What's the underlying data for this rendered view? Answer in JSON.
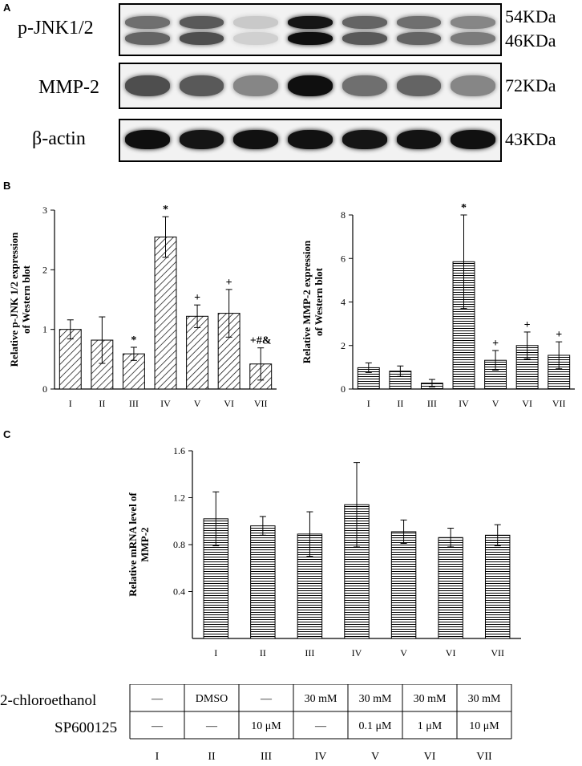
{
  "panels": {
    "a": "A",
    "b": "B",
    "c": "C"
  },
  "blots": [
    {
      "label": "p-JNK1/2",
      "markers": [
        "54KDa",
        "46KDa"
      ]
    },
    {
      "label": "MMP-2",
      "markers": [
        "72KDa"
      ]
    },
    {
      "label": "β-actin",
      "markers": [
        "43KDa"
      ]
    }
  ],
  "chart_data": [
    {
      "type": "bar",
      "categories": [
        "I",
        "II",
        "III",
        "IV",
        "V",
        "VI",
        "VII"
      ],
      "values": [
        1.0,
        0.82,
        0.59,
        2.55,
        1.22,
        1.27,
        0.42
      ],
      "errors": [
        0.16,
        0.39,
        0.11,
        0.34,
        0.19,
        0.4,
        0.27
      ],
      "annotations": [
        "",
        "",
        "*",
        "*",
        "+",
        "+",
        "+#&"
      ],
      "ylabel": "Relative p-JNK 1/2 expression of  Western blot",
      "ylim": [
        0,
        3
      ],
      "yticks": [
        "0",
        "1",
        "2",
        "3"
      ],
      "pattern": "diagonal"
    },
    {
      "type": "bar",
      "categories": [
        "I",
        "II",
        "III",
        "IV",
        "V",
        "VI",
        "VII"
      ],
      "values": [
        0.98,
        0.82,
        0.27,
        5.85,
        1.32,
        2.0,
        1.55
      ],
      "errors": [
        0.22,
        0.24,
        0.17,
        2.15,
        0.45,
        0.62,
        0.62
      ],
      "annotations": [
        "",
        "",
        "",
        "*",
        "+",
        "+",
        "+"
      ],
      "ylabel": "Relative MMP-2 expression of  Western blot",
      "ylim": [
        0,
        8
      ],
      "yticks": [
        "0",
        "2",
        "4",
        "6",
        "8"
      ],
      "pattern": "horizontal"
    },
    {
      "type": "bar",
      "categories": [
        "I",
        "II",
        "III",
        "IV",
        "V",
        "VI",
        "VII"
      ],
      "values": [
        1.02,
        0.96,
        0.89,
        1.14,
        0.91,
        0.86,
        0.88
      ],
      "errors": [
        0.23,
        0.08,
        0.19,
        0.36,
        0.1,
        0.08,
        0.09
      ],
      "annotations": [
        "",
        "",
        "",
        "",
        "",
        "",
        ""
      ],
      "ylabel": "Relative mRNA level of MMP-2",
      "ylim": [
        0,
        1.6
      ],
      "yticks": [
        "0.4",
        "0.8",
        "1.2",
        "1.6"
      ],
      "pattern": "horizontal"
    }
  ],
  "table": {
    "rows": [
      {
        "label": "2-chloroethanol",
        "cells": [
          "—",
          "DMSO",
          "—",
          "30 mM",
          "30 mM",
          "30 mM",
          "30 mM"
        ]
      },
      {
        "label": "SP600125",
        "cells": [
          "—",
          "—",
          "10 μM",
          "—",
          "0.1 μM",
          "1 μM",
          "10 μM"
        ]
      }
    ],
    "groups": [
      "I",
      "II",
      "III",
      "IV",
      "V",
      "VI",
      "VII"
    ]
  }
}
